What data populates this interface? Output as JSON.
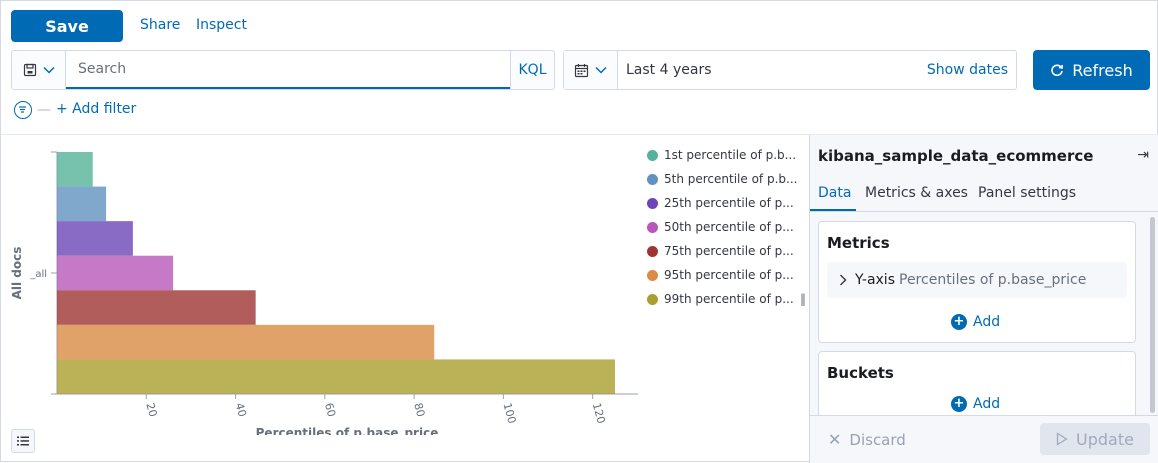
{
  "toolbar": {
    "save_label": "Save",
    "share_label": "Share",
    "inspect_label": "Inspect"
  },
  "query": {
    "placeholder": "Search",
    "value": "",
    "language_label": "KQL"
  },
  "time": {
    "range_label": "Last 4 years",
    "show_dates_label": "Show dates",
    "refresh_label": "Refresh"
  },
  "filters": {
    "add_filter_label": "+ Add filter"
  },
  "chart_data": {
    "type": "bar",
    "orientation": "horizontal",
    "categories": [
      "_all"
    ],
    "series": [
      {
        "name": "1st percentile of p.b...",
        "values": [
          8
        ],
        "color": "#54b399"
      },
      {
        "name": "5th percentile of p.b...",
        "values": [
          11
        ],
        "color": "#6092c0"
      },
      {
        "name": "25th percentile of p...",
        "values": [
          17
        ],
        "color": "#6c45b6"
      },
      {
        "name": "50th percentile of p...",
        "values": [
          26
        ],
        "color": "#b657b9"
      },
      {
        "name": "75th percentile of p...",
        "values": [
          44.5
        ],
        "color": "#9e3533"
      },
      {
        "name": "95th percentile of p...",
        "values": [
          84.5
        ],
        "color": "#da8b45"
      },
      {
        "name": "99th percentile of p...",
        "values": [
          125
        ],
        "color": "#aa9f2e"
      }
    ],
    "xlabel": "Percentiles of p.base_price",
    "ylabel": "All docs",
    "xticks": [
      20,
      40,
      60,
      80,
      100,
      120
    ],
    "xlim": [
      0,
      130
    ],
    "legend_position": "right",
    "grid": false
  },
  "sidebar": {
    "index_title": "kibana_sample_data_ecommerce",
    "tabs": [
      "Data",
      "Metrics & axes",
      "Panel settings"
    ],
    "metrics_title": "Metrics",
    "yaxis_label": "Y-axis",
    "yaxis_desc": "Percentiles of p.base_price",
    "add_label": "Add",
    "buckets_title": "Buckets",
    "buckets_add_label": "Add",
    "discard_label": "Discard",
    "update_label": "Update"
  }
}
